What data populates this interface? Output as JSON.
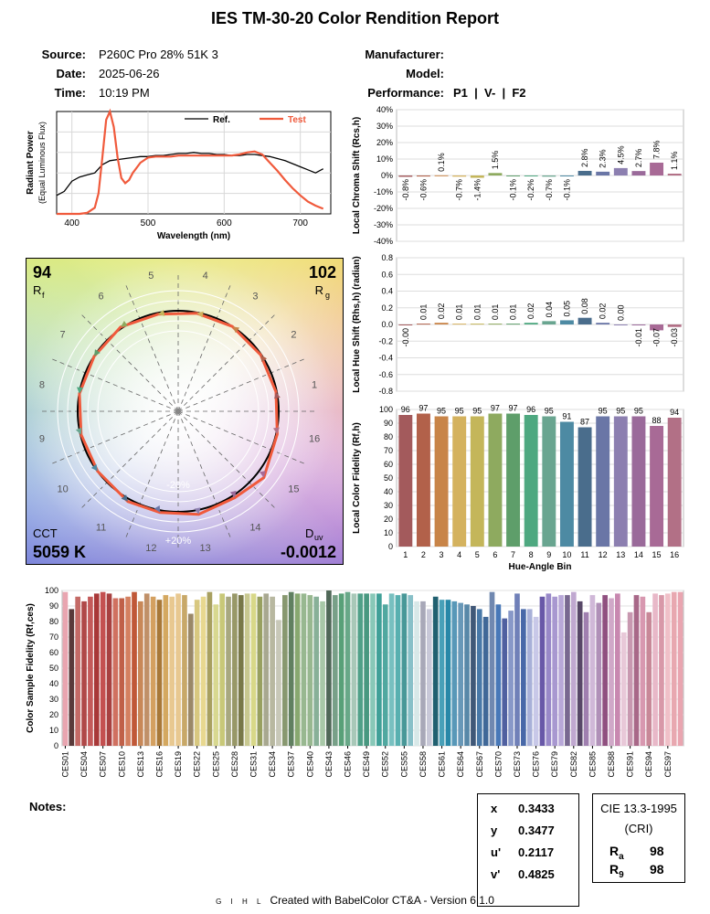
{
  "report": {
    "title": "IES TM-30-20 Color Rendition Report",
    "source_label": "Source:",
    "source": "P260C Pro 28% 51K 3",
    "date_label": "Date:",
    "date": "2025-06-26",
    "time_label": "Time:",
    "time": "10:19 PM",
    "manufacturer_label": "Manufacturer:",
    "manufacturer": "",
    "model_label": "Model:",
    "model": "",
    "performance_label": "Performance:",
    "performance": "P1  |  V-  |  F2",
    "notes_label": "Notes:",
    "footer_brand": "G I H L",
    "footer_text": "Created with BabelColor CT&A - Version 6.1.0"
  },
  "colorimetry": {
    "x_label": "x",
    "x": "0.3433",
    "y_label": "y",
    "y": "0.3477",
    "u_label": "u'",
    "u": "0.2117",
    "v_label": "v'",
    "v": "0.4825"
  },
  "cri": {
    "title": "CIE 13.3-1995",
    "subtitle": "(CRI)",
    "ra_label": "R",
    "ra_sub": "a",
    "ra": "98",
    "r9_label": "R",
    "r9_sub": "9",
    "r9": "98"
  },
  "vector_graphic": {
    "rf": "94",
    "rf_label": "R",
    "rf_sub": "f",
    "rg": "102",
    "rg_label": "R",
    "rg_sub": "g",
    "cct_label": "CCT",
    "cct": "5059 K",
    "duv_label": "D",
    "duv_sub": "uv",
    "duv": "-0.0012",
    "ring_inner_label": "-20%",
    "ring_outer_label": "+20%",
    "bin_numbers": [
      "1",
      "2",
      "3",
      "4",
      "5",
      "6",
      "7",
      "8",
      "9",
      "10",
      "11",
      "12",
      "13",
      "14",
      "15",
      "16"
    ]
  },
  "bin_colors": [
    "#a35a5c",
    "#b2614a",
    "#c88448",
    "#d4b25e",
    "#c4b65a",
    "#8eaa5f",
    "#5e9e6a",
    "#4ea880",
    "#69a590",
    "#4d8aa3",
    "#4a6d8c",
    "#6a76a6",
    "#8c7fb0",
    "#9a6a9a",
    "#a86a96",
    "#b27086"
  ],
  "chart_data": [
    {
      "type": "line",
      "title": "",
      "xlabel": "Wavelength (nm)",
      "ylabel": "Radiant Power",
      "ylabel_sub": "(Equal Luminous Flux)",
      "xlim": [
        380,
        740
      ],
      "ylim": [
        0,
        1
      ],
      "xticks": [
        400,
        500,
        600,
        700
      ],
      "series": [
        {
          "name": "Ref.",
          "color": "#000000",
          "x": [
            380,
            390,
            400,
            410,
            420,
            430,
            440,
            450,
            460,
            470,
            480,
            490,
            500,
            510,
            520,
            530,
            540,
            550,
            560,
            570,
            580,
            590,
            600,
            610,
            620,
            630,
            640,
            650,
            660,
            670,
            680,
            690,
            700,
            710,
            720,
            730
          ],
          "y": [
            0.18,
            0.22,
            0.32,
            0.36,
            0.38,
            0.4,
            0.48,
            0.52,
            0.53,
            0.54,
            0.55,
            0.56,
            0.56,
            0.57,
            0.57,
            0.58,
            0.59,
            0.59,
            0.6,
            0.59,
            0.59,
            0.58,
            0.58,
            0.57,
            0.57,
            0.58,
            0.58,
            0.57,
            0.56,
            0.54,
            0.52,
            0.49,
            0.46,
            0.43,
            0.4,
            0.44
          ]
        },
        {
          "name": "Test",
          "color": "#f05a3c",
          "x": [
            380,
            390,
            400,
            410,
            420,
            430,
            435,
            440,
            445,
            450,
            455,
            460,
            465,
            470,
            475,
            480,
            490,
            500,
            510,
            520,
            530,
            540,
            550,
            560,
            570,
            580,
            590,
            600,
            610,
            620,
            630,
            640,
            650,
            660,
            670,
            680,
            690,
            700,
            710,
            720,
            730
          ],
          "y": [
            0,
            0,
            0,
            0,
            0.01,
            0.06,
            0.2,
            0.55,
            0.92,
            1.0,
            0.85,
            0.55,
            0.35,
            0.3,
            0.33,
            0.4,
            0.5,
            0.55,
            0.56,
            0.56,
            0.56,
            0.57,
            0.57,
            0.57,
            0.57,
            0.57,
            0.57,
            0.57,
            0.57,
            0.58,
            0.6,
            0.61,
            0.58,
            0.5,
            0.42,
            0.33,
            0.25,
            0.18,
            0.12,
            0.08,
            0.05
          ]
        }
      ],
      "legend": "top-right"
    },
    {
      "type": "bar",
      "title": "",
      "ylabel": "Local Chroma Shift (Rcs,h)",
      "categories": [
        "1",
        "2",
        "3",
        "4",
        "5",
        "6",
        "7",
        "8",
        "9",
        "10",
        "11",
        "12",
        "13",
        "14",
        "15",
        "16"
      ],
      "values": [
        -0.8,
        -0.6,
        0.1,
        -0.7,
        -1.4,
        1.5,
        -0.1,
        -0.2,
        -0.7,
        -0.1,
        2.8,
        2.3,
        4.5,
        2.7,
        7.8,
        1.1
      ],
      "labels": [
        "-0.8%",
        "-0.6%",
        "0.1%",
        "-0.7%",
        "-1.4%",
        "1.5%",
        "-0.1%",
        "-0.2%",
        "-0.7%",
        "-0.1%",
        "2.8%",
        "2.3%",
        "4.5%",
        "2.7%",
        "7.8%",
        "1.1%"
      ],
      "ylim": [
        -40,
        40
      ],
      "yticks": [
        "-40%",
        "-30%",
        "-20%",
        "-10%",
        "0%",
        "10%",
        "20%",
        "30%",
        "40%"
      ]
    },
    {
      "type": "bar",
      "title": "",
      "ylabel": "Local Hue Shift (Rhs,h) (radian)",
      "categories": [
        "1",
        "2",
        "3",
        "4",
        "5",
        "6",
        "7",
        "8",
        "9",
        "10",
        "11",
        "12",
        "13",
        "14",
        "15",
        "16"
      ],
      "values": [
        -0.0,
        0.01,
        0.02,
        0.01,
        0.01,
        0.01,
        0.01,
        0.02,
        0.04,
        0.05,
        0.08,
        0.02,
        0.0,
        -0.01,
        -0.07,
        -0.03
      ],
      "labels": [
        "-0.00",
        "0.01",
        "0.02",
        "0.01",
        "0.01",
        "0.01",
        "0.01",
        "0.02",
        "0.04",
        "0.05",
        "0.08",
        "0.02",
        "0.00",
        "-0.01",
        "-0.07",
        "-0.03"
      ],
      "ylim": [
        -0.8,
        0.8
      ],
      "yticks": [
        "-0.8",
        "-0.6",
        "-0.4",
        "-0.2",
        "0.0",
        "0.2",
        "0.4",
        "0.6",
        "0.8"
      ]
    },
    {
      "type": "bar",
      "title": "",
      "xlabel": "Hue-Angle Bin",
      "ylabel": "Local Color Fidelity (Rf,h)",
      "categories": [
        "1",
        "2",
        "3",
        "4",
        "5",
        "6",
        "7",
        "8",
        "9",
        "10",
        "11",
        "12",
        "13",
        "14",
        "15",
        "16"
      ],
      "values": [
        96,
        97,
        95,
        95,
        95,
        97,
        97,
        96,
        95,
        91,
        87,
        95,
        95,
        95,
        88,
        94
      ],
      "labels": [
        "96",
        "97",
        "95",
        "95",
        "95",
        "97",
        "97",
        "96",
        "95",
        "91",
        "87",
        "95",
        "95",
        "95",
        "88",
        "94"
      ],
      "ylim": [
        0,
        100
      ],
      "yticks": [
        "0",
        "10",
        "20",
        "30",
        "40",
        "50",
        "60",
        "70",
        "80",
        "90",
        "100"
      ]
    },
    {
      "type": "bar",
      "title": "",
      "ylabel": "Color Sample Fidelity (Rf,ces)",
      "ylim": [
        0,
        100
      ],
      "yticks": [
        "0",
        "10",
        "20",
        "30",
        "40",
        "50",
        "60",
        "70",
        "80",
        "90",
        "100"
      ],
      "tick_labels": [
        "CES01",
        "CES04",
        "CES07",
        "CES10",
        "CES13",
        "CES16",
        "CES19",
        "CES22",
        "CES25",
        "CES28",
        "CES31",
        "CES34",
        "CES37",
        "CES40",
        "CES43",
        "CES46",
        "CES49",
        "CES52",
        "CES55",
        "CES58",
        "CES61",
        "CES64",
        "CES67",
        "CES70",
        "CES73",
        "CES76",
        "CES79",
        "CES82",
        "CES85",
        "CES88",
        "CES91",
        "CES94",
        "CES97"
      ],
      "values": [
        99,
        88,
        96,
        93,
        96,
        98,
        99,
        98,
        95,
        95,
        96,
        99,
        93,
        98,
        96,
        94,
        97,
        96,
        98,
        97,
        85,
        94,
        96,
        99,
        91,
        98,
        96,
        98,
        97,
        98,
        98,
        96,
        98,
        96,
        81,
        97,
        99,
        98,
        98,
        97,
        96,
        93,
        100,
        97,
        98,
        99,
        98,
        98,
        98,
        98,
        98,
        91,
        98,
        97,
        98,
        97,
        93,
        93,
        88,
        96,
        94,
        94,
        93,
        92,
        91,
        90,
        88,
        83,
        99,
        91,
        82,
        87,
        98,
        88,
        88,
        83,
        96,
        98,
        96,
        97,
        97,
        99,
        93,
        86,
        97,
        92,
        97,
        95,
        98,
        73,
        86,
        97,
        96,
        86,
        98,
        97,
        98,
        99,
        99
      ],
      "colors": [
        "#e9a5b0",
        "#5a3a3a",
        "#c46a66",
        "#b04848",
        "#c45a5a",
        "#a83838",
        "#c45050",
        "#a84040",
        "#d07060",
        "#c06048",
        "#d48060",
        "#c05838",
        "#c88858",
        "#c09068",
        "#d4a060",
        "#a87838",
        "#d4a860",
        "#e8c890",
        "#e8c890",
        "#c8a868",
        "#9a8868",
        "#d8c880",
        "#e8d890",
        "#a8a060",
        "#d8d890",
        "#c8c878",
        "#a8a880",
        "#989868",
        "#787848",
        "#c8c890",
        "#d8d888",
        "#98a060",
        "#a8a890",
        "#b8b8a0",
        "#c8c8b8",
        "#889870",
        "#608060",
        "#88a870",
        "#98b890",
        "#98b890",
        "#88b098",
        "#a8c8a8",
        "#506858",
        "#78a088",
        "#58a078",
        "#68a888",
        "#a8c8b8",
        "#50a088",
        "#489880",
        "#88c8b8",
        "#40a098",
        "#50a8a0",
        "#78c0c0",
        "#58b0b0",
        "#489898",
        "#88c0c8",
        "#d8e8e8",
        "#a8a8b8",
        "#c8c8d8",
        "#206070",
        "#48a0b8",
        "#2888a8",
        "#5898b8",
        "#6898b8",
        "#5888a8",
        "#405878",
        "#4878a8",
        "#406898",
        "#7088b0",
        "#4878b8",
        "#5060a0",
        "#8898c8",
        "#7080b8",
        "#4868a8",
        "#a8b0d8",
        "#c8c8e8",
        "#6858a8",
        "#9888c8",
        "#a898d0",
        "#b8a8d8",
        "#786890",
        "#c0a8d0",
        "#584868",
        "#a080b0",
        "#d0b8d8",
        "#b090b8",
        "#905080",
        "#d0a8c8",
        "#c888b0",
        "#e8c8d8",
        "#c898b0",
        "#a86888",
        "#d898b0",
        "#c88898",
        "#e8b8c8",
        "#d898a8",
        "#f0c0c8",
        "#e8a8b0"
      ]
    }
  ]
}
